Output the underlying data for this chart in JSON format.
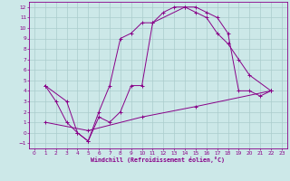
{
  "xlabel": "Windchill (Refroidissement éolien,°C)",
  "bg_color": "#cce8e8",
  "grid_color": "#aacccc",
  "line_color": "#880088",
  "xlim": [
    -0.5,
    23.5
  ],
  "ylim": [
    -1.5,
    12.5
  ],
  "xticks": [
    0,
    1,
    2,
    3,
    4,
    5,
    6,
    7,
    8,
    9,
    10,
    11,
    12,
    13,
    14,
    15,
    16,
    17,
    18,
    19,
    20,
    21,
    22,
    23
  ],
  "yticks": [
    -1,
    0,
    1,
    2,
    3,
    4,
    5,
    6,
    7,
    8,
    9,
    10,
    11,
    12
  ],
  "line1_x": [
    1,
    2,
    3,
    4,
    5,
    6,
    7,
    8,
    9,
    10,
    11,
    12,
    13,
    14,
    15,
    16,
    17,
    18,
    19,
    20,
    22
  ],
  "line1_y": [
    4.5,
    3.0,
    1.0,
    0.0,
    -0.8,
    2.0,
    4.5,
    9.0,
    9.5,
    10.5,
    10.5,
    11.5,
    12.0,
    12.0,
    11.5,
    11.0,
    9.5,
    8.5,
    7.0,
    5.5,
    4.0
  ],
  "line2_x": [
    1,
    3,
    4,
    5,
    6,
    7,
    8,
    9,
    10,
    11,
    14,
    15,
    16,
    17,
    18,
    19,
    20,
    21,
    22
  ],
  "line2_y": [
    4.5,
    3.0,
    0.0,
    -0.8,
    1.5,
    1.0,
    2.0,
    4.5,
    4.5,
    10.5,
    12.0,
    12.0,
    11.5,
    11.0,
    9.5,
    4.0,
    4.0,
    3.5,
    4.0
  ],
  "line3_x": [
    1,
    5,
    10,
    15,
    22
  ],
  "line3_y": [
    1.0,
    0.2,
    1.5,
    2.5,
    4.0
  ]
}
